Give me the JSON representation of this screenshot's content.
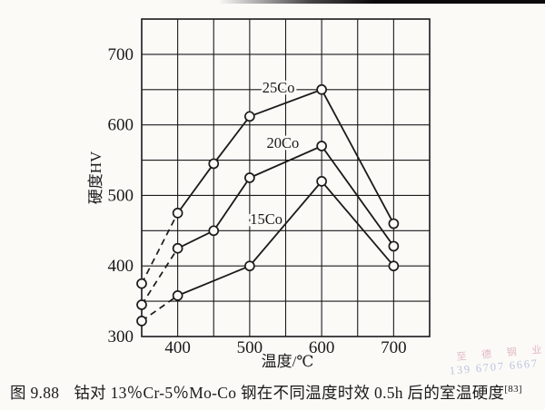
{
  "colors": {
    "ink": "#1a1a1a",
    "paper": "#fbfaf7",
    "watermark_company": "#d9a3b4",
    "watermark_phone": "#a5b2d6"
  },
  "watermark": {
    "line1": "至 德 钢 业",
    "line2": "139 6707 6667"
  },
  "caption": {
    "figure_label": "图 9.88",
    "text": "钴对 13％Cr-5％Mo-Co 钢在不同温度时效 0.5h 后的室温硬度",
    "reference": "[83]"
  },
  "chart_data": {
    "type": "line",
    "title": "",
    "xlabel": "温度/℃",
    "ylabel": "硬度HV",
    "xlim": [
      350,
      750
    ],
    "ylim": [
      300,
      750
    ],
    "x_ticks": [
      400,
      500,
      600,
      700
    ],
    "y_ticks": [
      300,
      400,
      500,
      600,
      700
    ],
    "grid": true,
    "grid_step_x": 50,
    "grid_step_y": 50,
    "legend_position": "inline-labels",
    "marker": "open-circle",
    "note": "first segment of each series (350→400°C) drawn dashed",
    "series": [
      {
        "name": "15Co",
        "x": [
          350,
          400,
          500,
          600,
          700
        ],
        "y": [
          322,
          358,
          400,
          520,
          400
        ],
        "dashed_first_segment": true
      },
      {
        "name": "20Co",
        "x": [
          350,
          400,
          450,
          500,
          600,
          700
        ],
        "y": [
          345,
          425,
          450,
          525,
          570,
          428
        ],
        "dashed_first_segment": true
      },
      {
        "name": "25Co",
        "x": [
          350,
          400,
          450,
          500,
          600,
          700
        ],
        "y": [
          375,
          475,
          545,
          612,
          650,
          460
        ],
        "dashed_first_segment": true
      }
    ],
    "annotations": [
      {
        "text": "25Co",
        "x": 540,
        "y": 652
      },
      {
        "text": "20Co",
        "x": 546,
        "y": 574
      },
      {
        "text": "15Co",
        "x": 523,
        "y": 466
      }
    ]
  }
}
